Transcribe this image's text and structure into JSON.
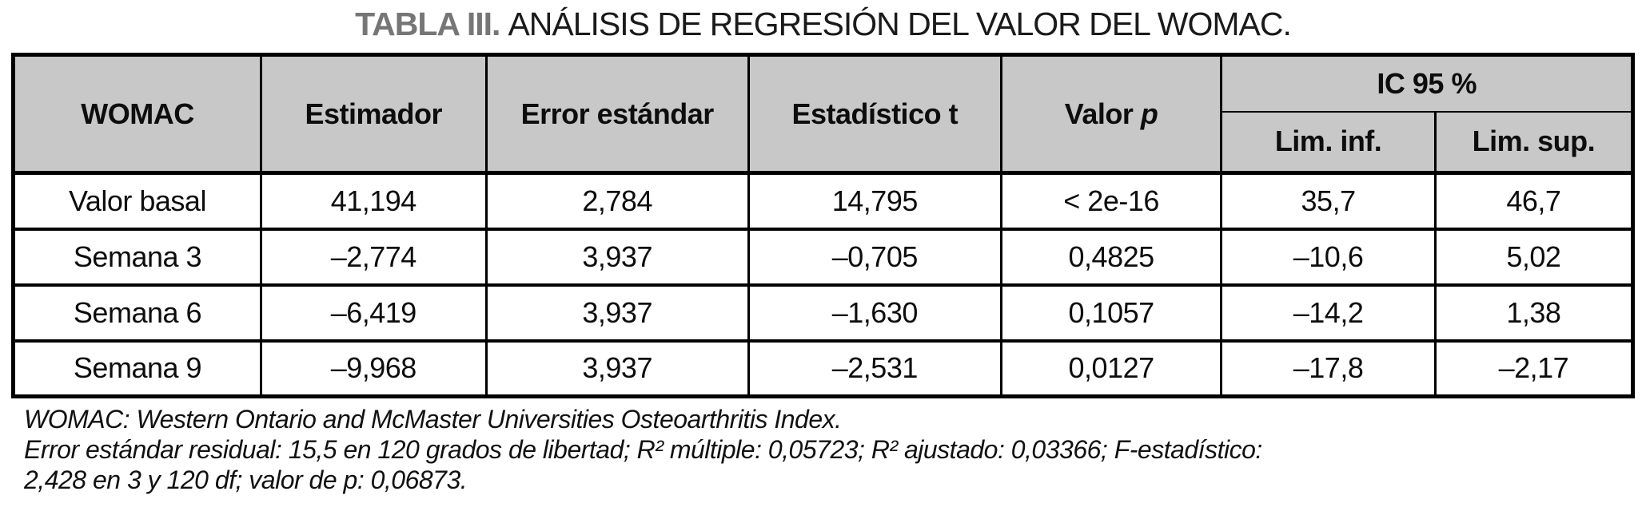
{
  "title": {
    "label": "TABLA III.",
    "text": "ANÁLISIS DE REGRESIÓN DEL VALOR DEL WOMAC."
  },
  "colors": {
    "header_bg": "#c8c8c8",
    "border": "#000000",
    "title_label_gray": "#767676"
  },
  "table": {
    "headers": {
      "womac": "WOMAC",
      "estimador": "Estimador",
      "error_estandar": "Error estándar",
      "estadistico_t": "Estadístico t",
      "valor_p_prefix": "Valor",
      "valor_p_italic": "p",
      "ic95": "IC 95 %",
      "lim_inf": "Lim. inf.",
      "lim_sup": "Lim. sup."
    },
    "rows": [
      {
        "label": "Valor basal",
        "estimador": "41,194",
        "error_estandar": "2,784",
        "estadistico_t": "14,795",
        "valor_p": "< 2e-16",
        "lim_inf": "35,7",
        "lim_sup": "46,7"
      },
      {
        "label": "Semana 3",
        "estimador": "–2,774",
        "error_estandar": "3,937",
        "estadistico_t": "–0,705",
        "valor_p": "0,4825",
        "lim_inf": "–10,6",
        "lim_sup": "5,02"
      },
      {
        "label": "Semana 6",
        "estimador": "–6,419",
        "error_estandar": "3,937",
        "estadistico_t": "–1,630",
        "valor_p": "0,1057",
        "lim_inf": "–14,2",
        "lim_sup": "1,38"
      },
      {
        "label": "Semana 9",
        "estimador": "–9,968",
        "error_estandar": "3,937",
        "estadistico_t": "–2,531",
        "valor_p": "0,0127",
        "lim_inf": "–17,8",
        "lim_sup": "–2,17"
      }
    ]
  },
  "footnotes": {
    "line1": "WOMAC: Western Ontario and McMaster Universities Osteoarthritis Index.",
    "line2": "Error estándar residual: 15,5 en 120 grados de libertad; R² múltiple: 0,05723; R² ajustado: 0,03366; F-estadístico:",
    "line3": "2,428 en 3 y 120 df; valor de p: 0,06873."
  }
}
